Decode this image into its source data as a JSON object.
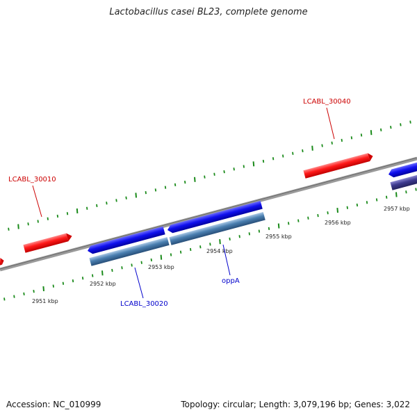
{
  "title": "Lactobacillus casei BL23, complete genome",
  "footer": {
    "accession": "Accession: NC_010999",
    "summary": "Topology: circular; Length: 3,079,196 bp; Genes: 3,022"
  },
  "tick_labels": [
    "2951 kbp",
    "2952 kbp",
    "2953 kbp",
    "2954 kbp",
    "2955 kbp",
    "2956 kbp",
    "2957 kbp"
  ],
  "gene_labels": [
    {
      "name": "LCABL_30010",
      "strand": "forward"
    },
    {
      "name": "LCABL_30040",
      "strand": "forward"
    },
    {
      "name": "LCABL_30020",
      "strand": "reverse"
    },
    {
      "name": "oppA",
      "strand": "reverse"
    }
  ],
  "colors": {
    "forward_gene": "#ff1a1a",
    "reverse_gene": "#1010ee",
    "reverse_cds": "#4a7fb0",
    "dark_cds": "#3d3a8f",
    "backbone": "#888888",
    "tick": "#1a8a1a",
    "forward_label": "#cc0000",
    "reverse_label": "#0000cc",
    "tick_label": "#222222"
  }
}
